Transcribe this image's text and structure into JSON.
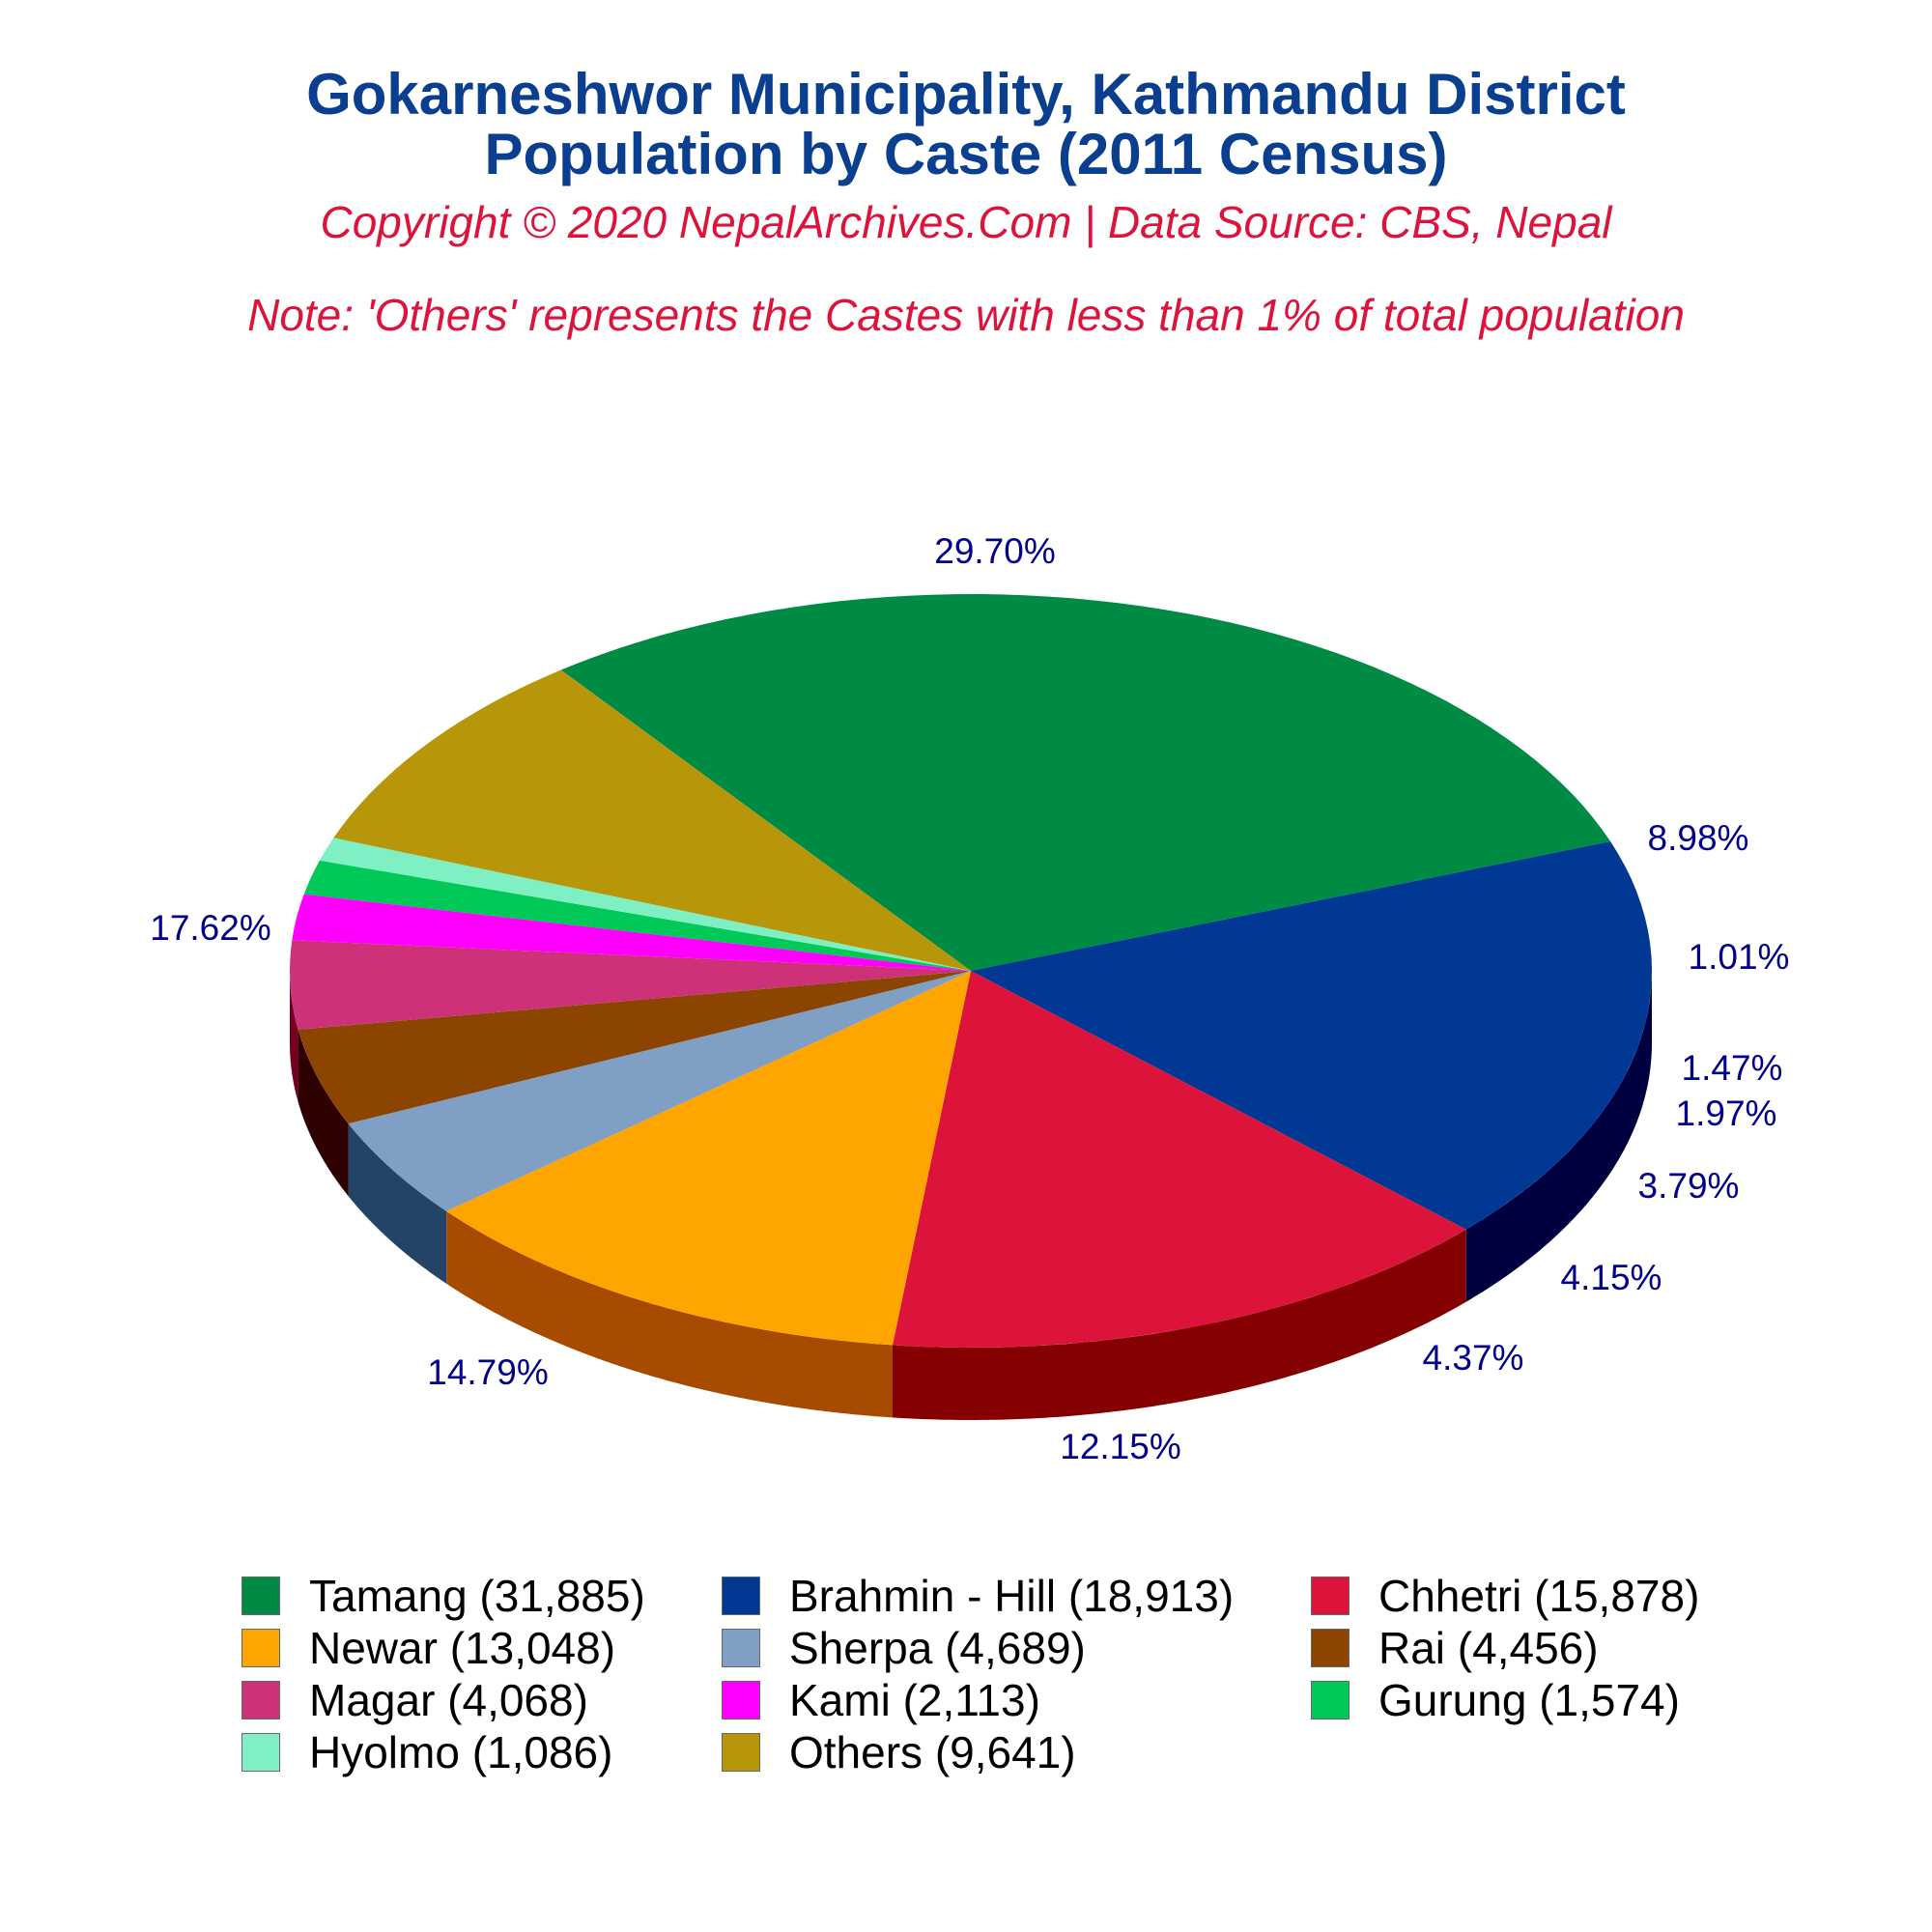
{
  "header": {
    "title_line1": "Gokarneshwor Municipality, Kathmandu District",
    "title_line2": "Population by Caste (2011 Census)",
    "copyright": "Copyright © 2020 NepalArchives.Com | Data Source: CBS, Nepal",
    "note": "Note: 'Others' represents the Castes with less than 1% of total population"
  },
  "chart_data": {
    "type": "pie",
    "style": "3d",
    "title": "Gokarneshwor Municipality, Kathmandu District Population by Caste (2011 Census)",
    "legend_position": "bottom",
    "slices": [
      {
        "name": "Tamang",
        "value": 31885,
        "percent_label": "29.70%",
        "legend_label": "Tamang (31,885)",
        "color": "#008b45",
        "side_color": "#005a2d"
      },
      {
        "name": "Brahmin - Hill",
        "value": 18913,
        "percent_label": "17.62%",
        "legend_label": "Brahmin - Hill (18,913)",
        "color": "#003893",
        "side_color": "#000040"
      },
      {
        "name": "Chhetri",
        "value": 15878,
        "percent_label": "14.79%",
        "legend_label": "Chhetri (15,878)",
        "color": "#dc143c",
        "side_color": "#850000"
      },
      {
        "name": "Newar",
        "value": 13048,
        "percent_label": "12.15%",
        "legend_label": "Newar (13,048)",
        "color": "#ffa500",
        "side_color": "#a64b00"
      },
      {
        "name": "Sherpa",
        "value": 4689,
        "percent_label": "4.37%",
        "legend_label": "Sherpa (4,689)",
        "color": "#7f9fc4",
        "side_color": "#234466"
      },
      {
        "name": "Rai",
        "value": 4456,
        "percent_label": "4.15%",
        "legend_label": "Rai (4,456)",
        "color": "#8b4500",
        "side_color": "#2e0000"
      },
      {
        "name": "Magar",
        "value": 4068,
        "percent_label": "3.79%",
        "legend_label": "Magar (4,068)",
        "color": "#cd3278",
        "side_color": "#73001e"
      },
      {
        "name": "Kami",
        "value": 2113,
        "percent_label": "1.97%",
        "legend_label": "Kami (2,113)",
        "color": "#ff00ff",
        "side_color": "#a500a5"
      },
      {
        "name": "Gurung",
        "value": 1574,
        "percent_label": "1.47%",
        "legend_label": "Gurung (1,574)",
        "color": "#00c957",
        "side_color": "#006f00"
      },
      {
        "name": "Hyolmo",
        "value": 1086,
        "percent_label": "1.01%",
        "legend_label": "Hyolmo (1,086)",
        "color": "#7fefc4",
        "side_color": "#25956a"
      },
      {
        "name": "Others",
        "value": 9641,
        "percent_label": "8.98%",
        "legend_label": "Others (9,641)",
        "color": "#b8960a",
        "side_color": "#5e3c00"
      }
    ]
  }
}
